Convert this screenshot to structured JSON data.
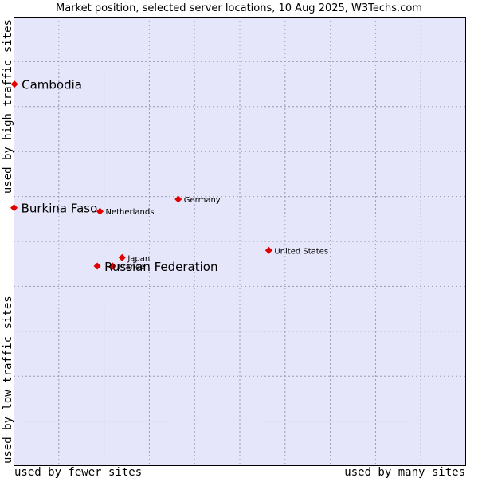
{
  "chart_data": {
    "type": "scatter",
    "title": "Market position, selected server locations, 10 Aug 2025, W3Techs.com",
    "xlabel_left": "used by fewer sites",
    "xlabel_right": "used by many sites",
    "ylabel_bottom": "used by low traffic sites",
    "ylabel_top": "used by high traffic sites",
    "xlim": [
      0,
      100
    ],
    "ylim": [
      0,
      100
    ],
    "grid": true,
    "colors": {
      "plot_bg": "#e6e6fa",
      "grid": "#9a9ab8",
      "marker": "#e00000",
      "frame": "#000000"
    },
    "points": [
      {
        "name": "Cambodia",
        "x": 0.2,
        "y": 85.0,
        "highlight": true
      },
      {
        "name": "Burkina Faso",
        "x": 0.1,
        "y": 57.5,
        "highlight": true
      },
      {
        "name": "Russian Federation",
        "x": 18.5,
        "y": 44.5,
        "highlight": true
      },
      {
        "name": "Netherlands",
        "x": 19.1,
        "y": 56.7,
        "highlight": false
      },
      {
        "name": "Germany",
        "x": 36.4,
        "y": 59.4,
        "highlight": false
      },
      {
        "name": "Japan",
        "x": 24.0,
        "y": 46.4,
        "highlight": false
      },
      {
        "name": "France",
        "x": 21.9,
        "y": 44.5,
        "highlight": false
      },
      {
        "name": "United States",
        "x": 56.4,
        "y": 48.0,
        "highlight": false
      }
    ]
  }
}
